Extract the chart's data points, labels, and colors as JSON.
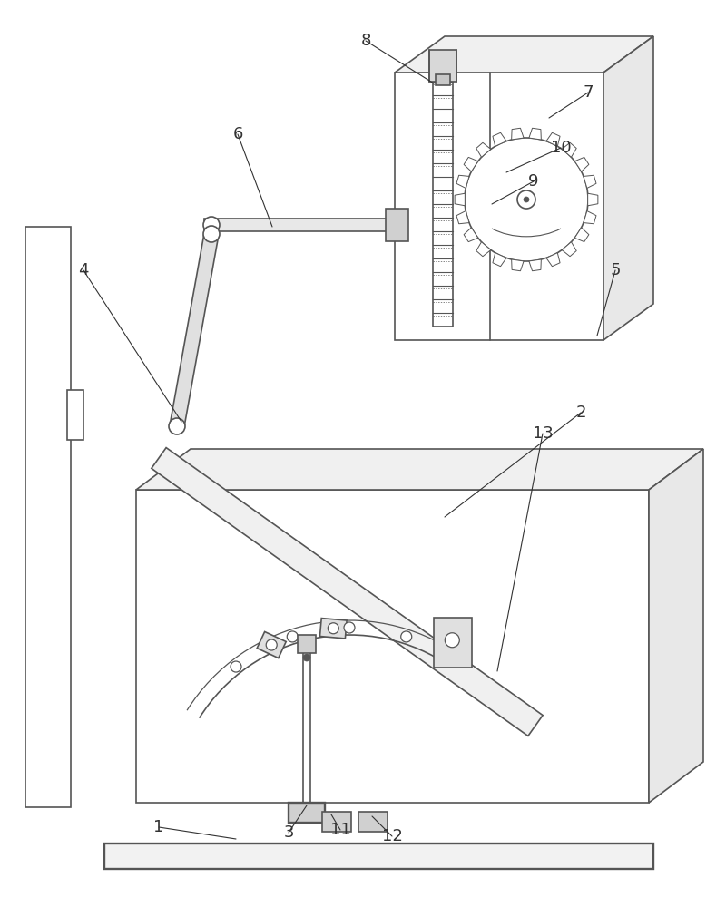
{
  "bg_color": "#ffffff",
  "lc": "#555555",
  "lw": 1.2,
  "label_color": "#333333",
  "label_fs": 13,
  "figsize": [
    8.0,
    10.0
  ],
  "dpi": 100
}
